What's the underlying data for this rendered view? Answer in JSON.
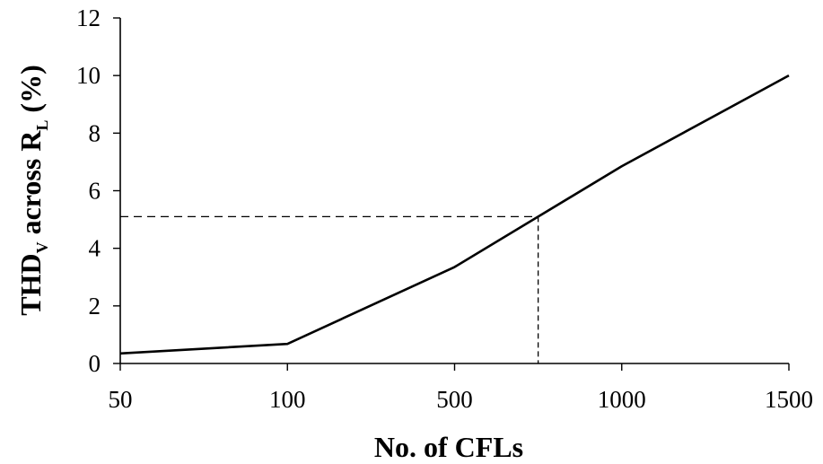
{
  "chart_data": {
    "type": "line",
    "xlabel": "No. of CFLs",
    "ylabel": {
      "prefix": "THD",
      "prefix_sub": "V",
      "middle": " across R",
      "middle_sub": "L",
      "suffix": " (%)"
    },
    "categories": [
      "50",
      "100",
      "500",
      "1000",
      "1500"
    ],
    "x_scale": "categorical-equal-spacing",
    "ylim": [
      0,
      12
    ],
    "yticks": [
      "0",
      "2",
      "4",
      "6",
      "8",
      "10",
      "12"
    ],
    "grid": false,
    "series": [
      {
        "points": [
          {
            "x": "50",
            "y": 0.35
          },
          {
            "x": "100",
            "y": 0.68
          },
          {
            "x": "500",
            "y": 3.35
          },
          {
            "x": "1000",
            "y": 6.85
          },
          {
            "x": "1500",
            "y": 10.0
          }
        ],
        "color": "#000000"
      }
    ],
    "annotation": {
      "type": "dashed-crosshair",
      "x_between": [
        "500",
        "1000"
      ],
      "x_fraction": 0.5,
      "y": 5.1,
      "color": "#000000"
    }
  }
}
